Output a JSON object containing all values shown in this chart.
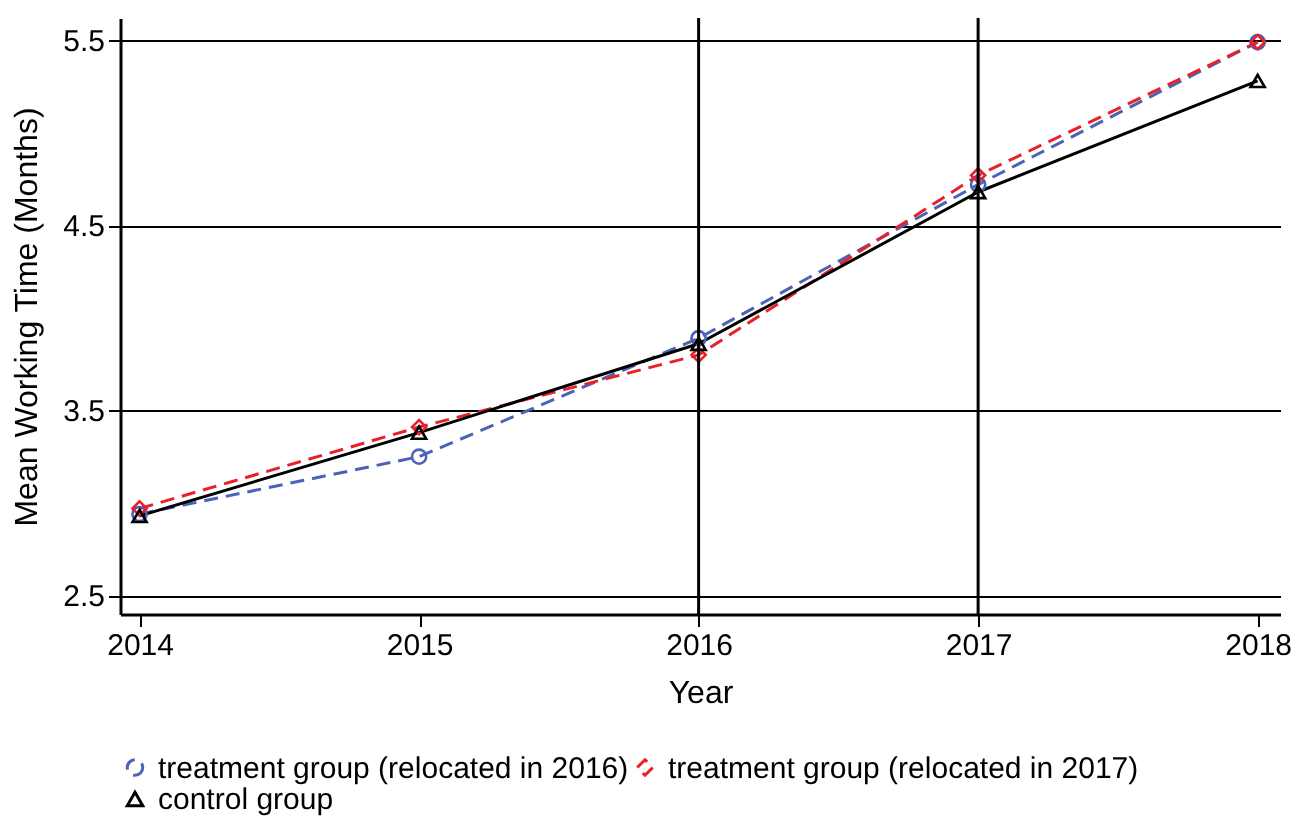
{
  "chart_data": {
    "type": "line",
    "xlabel": "Year",
    "ylabel": "Mean Working Time (Months)",
    "x": [
      2014,
      2015,
      2016,
      2017,
      2018
    ],
    "series": [
      {
        "name": "treatment group (relocated in 2016)",
        "color": "#4a63b8",
        "marker": "circle",
        "line_style": "dashed",
        "values": [
          2.94,
          3.25,
          3.89,
          4.72,
          5.49
        ]
      },
      {
        "name": "treatment group (relocated in 2017)",
        "color": "#e8202a",
        "marker": "diamond",
        "line_style": "dashed",
        "values": [
          2.97,
          3.41,
          3.8,
          4.77,
          5.49
        ]
      },
      {
        "name": "control group",
        "color": "#000000",
        "marker": "triangle",
        "line_style": "solid",
        "values": [
          2.93,
          3.38,
          3.86,
          4.68,
          5.28
        ]
      }
    ],
    "xlim": [
      2013.93,
      2018.08
    ],
    "xticks": [
      2014,
      2015,
      2016,
      2017,
      2018
    ],
    "ylim": [
      2.4,
      5.62
    ],
    "yticks": [
      2.5,
      3.5,
      4.5,
      5.5
    ],
    "ref_lines": [
      {
        "axis": "x",
        "value": 2016,
        "color": "#000000"
      },
      {
        "axis": "x",
        "value": 2017,
        "color": "#000000"
      }
    ],
    "grid": "y",
    "legend": "bottom"
  }
}
